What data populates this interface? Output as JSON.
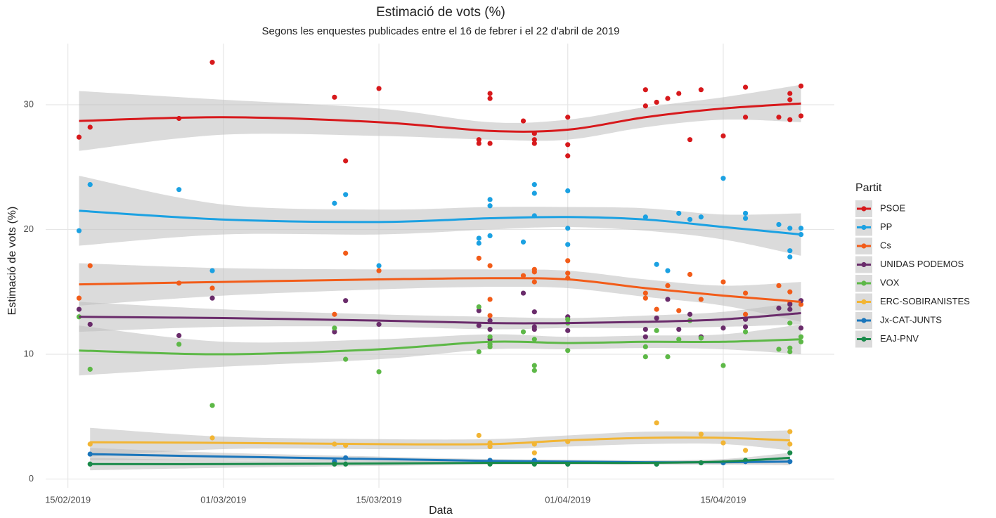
{
  "chart_data": {
    "type": "scatter",
    "title": "Estimació de vots (%)",
    "subtitle": "Segons les enquestes publicades entre el 16 de febrer i el 22 d'abril de 2019",
    "x_label": "Data",
    "y_label": "Estimació de vots (%)",
    "legend_title": "Partit",
    "legend_position": "right",
    "grid": true,
    "band_color": "#bdbdbd",
    "xlim": [
      "2019-02-13",
      "2019-04-25"
    ],
    "xticks": [
      {
        "value": "2019-02-15",
        "label": "15/02/2019"
      },
      {
        "value": "2019-03-01",
        "label": "01/03/2019"
      },
      {
        "value": "2019-03-15",
        "label": "15/03/2019"
      },
      {
        "value": "2019-04-01",
        "label": "01/04/2019"
      },
      {
        "value": "2019-04-15",
        "label": "15/04/2019"
      }
    ],
    "ylim": [
      -0.7,
      34.9
    ],
    "yticks": [
      0,
      10,
      20,
      30
    ],
    "series": [
      {
        "name": "PSOE",
        "color": "#d7191c",
        "x": [
          "2019-02-16",
          "2019-02-17",
          "2019-02-25",
          "2019-02-28",
          "2019-03-11",
          "2019-03-12",
          "2019-03-15",
          "2019-03-24",
          "2019-03-24",
          "2019-03-25",
          "2019-03-25",
          "2019-03-25",
          "2019-03-28",
          "2019-03-29",
          "2019-03-29",
          "2019-03-29",
          "2019-04-01",
          "2019-04-01",
          "2019-04-01",
          "2019-04-08",
          "2019-04-08",
          "2019-04-09",
          "2019-04-10",
          "2019-04-11",
          "2019-04-12",
          "2019-04-13",
          "2019-04-15",
          "2019-04-17",
          "2019-04-17",
          "2019-04-20",
          "2019-04-21",
          "2019-04-21",
          "2019-04-21",
          "2019-04-22",
          "2019-04-22"
        ],
        "values": [
          27.4,
          28.2,
          28.9,
          33.4,
          30.6,
          25.5,
          31.3,
          27.2,
          26.9,
          30.9,
          30.5,
          26.9,
          28.7,
          27.7,
          27.2,
          26.9,
          29.0,
          26.8,
          25.9,
          31.2,
          29.9,
          30.2,
          30.5,
          30.9,
          27.2,
          31.2,
          27.5,
          31.4,
          29.0,
          29.0,
          30.9,
          30.4,
          28.8,
          31.5,
          29.1
        ],
        "trend": {
          "x": [
            "2019-02-16",
            "2019-03-01",
            "2019-03-15",
            "2019-03-25",
            "2019-04-01",
            "2019-04-08",
            "2019-04-15",
            "2019-04-22"
          ],
          "values": [
            28.7,
            29.0,
            28.6,
            27.9,
            28.0,
            29.0,
            29.7,
            30.1
          ],
          "lower": [
            26.3,
            27.6,
            27.5,
            27.2,
            27.2,
            28.2,
            28.8,
            28.6
          ],
          "upper": [
            31.1,
            30.4,
            29.7,
            28.6,
            28.8,
            29.8,
            30.6,
            31.6
          ]
        }
      },
      {
        "name": "PP",
        "color": "#1ba1e2",
        "x": [
          "2019-02-16",
          "2019-02-17",
          "2019-02-25",
          "2019-02-28",
          "2019-03-11",
          "2019-03-12",
          "2019-03-15",
          "2019-03-24",
          "2019-03-24",
          "2019-03-25",
          "2019-03-25",
          "2019-03-25",
          "2019-03-28",
          "2019-03-29",
          "2019-03-29",
          "2019-03-29",
          "2019-04-01",
          "2019-04-01",
          "2019-04-01",
          "2019-04-08",
          "2019-04-09",
          "2019-04-10",
          "2019-04-11",
          "2019-04-12",
          "2019-04-13",
          "2019-04-15",
          "2019-04-17",
          "2019-04-17",
          "2019-04-20",
          "2019-04-21",
          "2019-04-21",
          "2019-04-21",
          "2019-04-22",
          "2019-04-22"
        ],
        "values": [
          19.9,
          23.6,
          23.2,
          16.7,
          22.1,
          22.8,
          17.1,
          19.3,
          18.9,
          22.4,
          21.9,
          19.5,
          19.0,
          23.6,
          22.9,
          21.1,
          23.1,
          20.1,
          18.8,
          21.0,
          17.2,
          16.7,
          21.3,
          20.8,
          21.0,
          24.1,
          21.3,
          20.9,
          20.4,
          20.1,
          18.3,
          17.8,
          20.1,
          19.6
        ],
        "trend": {
          "x": [
            "2019-02-16",
            "2019-03-01",
            "2019-03-15",
            "2019-03-25",
            "2019-04-01",
            "2019-04-08",
            "2019-04-15",
            "2019-04-22"
          ],
          "values": [
            21.5,
            20.8,
            20.6,
            20.9,
            21.0,
            20.8,
            20.2,
            19.6
          ],
          "lower": [
            18.7,
            19.6,
            19.6,
            20.0,
            20.2,
            19.9,
            19.2,
            17.9
          ],
          "upper": [
            24.3,
            22.0,
            21.6,
            21.8,
            21.8,
            21.7,
            21.2,
            21.3
          ]
        }
      },
      {
        "name": "Cs",
        "color": "#f25c19",
        "x": [
          "2019-02-16",
          "2019-02-17",
          "2019-02-25",
          "2019-02-28",
          "2019-03-11",
          "2019-03-12",
          "2019-03-15",
          "2019-03-24",
          "2019-03-25",
          "2019-03-25",
          "2019-03-25",
          "2019-03-28",
          "2019-03-29",
          "2019-03-29",
          "2019-03-29",
          "2019-04-01",
          "2019-04-01",
          "2019-04-01",
          "2019-04-08",
          "2019-04-08",
          "2019-04-09",
          "2019-04-10",
          "2019-04-11",
          "2019-04-12",
          "2019-04-13",
          "2019-04-15",
          "2019-04-17",
          "2019-04-17",
          "2019-04-20",
          "2019-04-21",
          "2019-04-21",
          "2019-04-22"
        ],
        "values": [
          14.5,
          17.1,
          15.7,
          15.3,
          13.2,
          18.1,
          16.7,
          17.7,
          17.1,
          14.4,
          13.1,
          16.3,
          16.8,
          16.6,
          15.8,
          17.5,
          16.5,
          16.1,
          14.9,
          14.5,
          13.6,
          15.5,
          13.5,
          16.4,
          14.4,
          15.8,
          14.9,
          13.2,
          15.5,
          15.0,
          14.1,
          14.0
        ],
        "trend": {
          "x": [
            "2019-02-16",
            "2019-03-01",
            "2019-03-15",
            "2019-03-25",
            "2019-04-01",
            "2019-04-08",
            "2019-04-15",
            "2019-04-22"
          ],
          "values": [
            15.6,
            15.8,
            16.0,
            16.1,
            16.0,
            15.3,
            14.7,
            14.2
          ],
          "lower": [
            13.9,
            14.7,
            15.2,
            15.4,
            15.3,
            14.6,
            13.9,
            12.6
          ],
          "upper": [
            17.3,
            16.9,
            16.8,
            16.8,
            16.7,
            16.0,
            15.5,
            15.8
          ]
        }
      },
      {
        "name": "UNIDAS PODEMOS",
        "color": "#6a2c6b",
        "x": [
          "2019-02-16",
          "2019-02-17",
          "2019-02-25",
          "2019-02-28",
          "2019-03-11",
          "2019-03-12",
          "2019-03-15",
          "2019-03-24",
          "2019-03-24",
          "2019-03-25",
          "2019-03-25",
          "2019-03-25",
          "2019-03-28",
          "2019-03-29",
          "2019-03-29",
          "2019-03-29",
          "2019-04-01",
          "2019-04-01",
          "2019-04-08",
          "2019-04-08",
          "2019-04-09",
          "2019-04-10",
          "2019-04-11",
          "2019-04-12",
          "2019-04-13",
          "2019-04-15",
          "2019-04-17",
          "2019-04-17",
          "2019-04-20",
          "2019-04-21",
          "2019-04-21",
          "2019-04-22",
          "2019-04-22"
        ],
        "values": [
          13.6,
          12.4,
          11.5,
          14.5,
          11.8,
          14.3,
          12.4,
          13.5,
          12.3,
          12.7,
          12.0,
          11.2,
          14.9,
          13.4,
          12.2,
          12.0,
          13.0,
          11.9,
          12.0,
          11.4,
          12.9,
          14.4,
          12.0,
          13.2,
          11.4,
          12.1,
          12.8,
          12.2,
          13.7,
          14.0,
          13.6,
          14.3,
          12.1
        ],
        "trend": {
          "x": [
            "2019-02-16",
            "2019-03-01",
            "2019-03-15",
            "2019-03-25",
            "2019-04-01",
            "2019-04-08",
            "2019-04-15",
            "2019-04-22"
          ],
          "values": [
            13.0,
            12.9,
            12.7,
            12.5,
            12.5,
            12.6,
            12.8,
            13.3
          ],
          "lower": [
            11.8,
            12.2,
            12.2,
            12.0,
            12.1,
            12.1,
            12.2,
            12.4
          ],
          "upper": [
            14.2,
            13.6,
            13.2,
            13.0,
            12.9,
            13.1,
            13.4,
            14.2
          ]
        }
      },
      {
        "name": "VOX",
        "color": "#5db847",
        "x": [
          "2019-02-16",
          "2019-02-17",
          "2019-02-25",
          "2019-02-28",
          "2019-03-11",
          "2019-03-12",
          "2019-03-15",
          "2019-03-24",
          "2019-03-24",
          "2019-03-25",
          "2019-03-25",
          "2019-03-25",
          "2019-03-28",
          "2019-03-29",
          "2019-03-29",
          "2019-03-29",
          "2019-04-01",
          "2019-04-01",
          "2019-04-01",
          "2019-04-08",
          "2019-04-08",
          "2019-04-09",
          "2019-04-10",
          "2019-04-11",
          "2019-04-12",
          "2019-04-13",
          "2019-04-15",
          "2019-04-17",
          "2019-04-20",
          "2019-04-21",
          "2019-04-21",
          "2019-04-21",
          "2019-04-22",
          "2019-04-22"
        ],
        "values": [
          13.0,
          8.8,
          10.8,
          5.9,
          12.1,
          9.6,
          8.6,
          13.8,
          10.2,
          11.4,
          10.8,
          10.6,
          11.8,
          11.2,
          9.1,
          8.7,
          12.8,
          12.5,
          10.3,
          10.6,
          9.8,
          11.9,
          9.8,
          11.2,
          12.7,
          11.3,
          9.1,
          11.8,
          10.4,
          12.5,
          10.5,
          10.2,
          11.4,
          11.0
        ],
        "trend": {
          "x": [
            "2019-02-16",
            "2019-03-01",
            "2019-03-15",
            "2019-03-25",
            "2019-04-01",
            "2019-04-08",
            "2019-04-15",
            "2019-04-22"
          ],
          "values": [
            10.3,
            10.0,
            10.4,
            11.0,
            10.9,
            11.0,
            11.0,
            11.2
          ],
          "lower": [
            8.3,
            9.0,
            9.6,
            10.4,
            10.4,
            10.5,
            10.4,
            10.0
          ],
          "upper": [
            12.3,
            11.0,
            11.2,
            11.6,
            11.4,
            11.5,
            11.6,
            12.4
          ]
        }
      },
      {
        "name": "ERC-SOBIRANISTES",
        "color": "#f2b534",
        "x": [
          "2019-02-17",
          "2019-02-28",
          "2019-03-11",
          "2019-03-12",
          "2019-03-24",
          "2019-03-25",
          "2019-03-25",
          "2019-03-29",
          "2019-03-29",
          "2019-04-01",
          "2019-04-09",
          "2019-04-13",
          "2019-04-15",
          "2019-04-17",
          "2019-04-21",
          "2019-04-21"
        ],
        "values": [
          2.8,
          3.3,
          2.8,
          2.7,
          3.5,
          2.9,
          2.6,
          2.8,
          2.1,
          3.0,
          4.5,
          3.6,
          2.9,
          2.3,
          3.8,
          2.8
        ],
        "trend": {
          "x": [
            "2019-02-17",
            "2019-03-01",
            "2019-03-15",
            "2019-03-25",
            "2019-04-01",
            "2019-04-08",
            "2019-04-15",
            "2019-04-21"
          ],
          "values": [
            2.95,
            2.9,
            2.8,
            2.8,
            3.1,
            3.3,
            3.3,
            3.1
          ],
          "lower": [
            1.8,
            2.4,
            2.4,
            2.4,
            2.6,
            2.8,
            2.8,
            2.3
          ],
          "upper": [
            4.1,
            3.4,
            3.2,
            3.2,
            3.5,
            3.8,
            3.8,
            3.9
          ]
        }
      },
      {
        "name": "Jx-CAT-JUNTS",
        "color": "#1a75bb",
        "x": [
          "2019-02-17",
          "2019-03-11",
          "2019-03-12",
          "2019-03-25",
          "2019-03-29",
          "2019-04-01",
          "2019-04-09",
          "2019-04-15",
          "2019-04-17",
          "2019-04-21"
        ],
        "values": [
          2.0,
          1.4,
          1.7,
          1.5,
          1.5,
          1.2,
          1.2,
          1.3,
          1.4,
          1.4
        ],
        "trend": {
          "x": [
            "2019-02-17",
            "2019-03-01",
            "2019-03-15",
            "2019-03-25",
            "2019-04-01",
            "2019-04-08",
            "2019-04-15",
            "2019-04-21"
          ],
          "values": [
            2.0,
            1.8,
            1.6,
            1.45,
            1.4,
            1.35,
            1.35,
            1.4
          ],
          "lower": [
            1.5,
            1.5,
            1.4,
            1.3,
            1.25,
            1.2,
            1.15,
            1.1
          ],
          "upper": [
            2.5,
            2.1,
            1.8,
            1.6,
            1.55,
            1.5,
            1.55,
            1.7
          ]
        }
      },
      {
        "name": "EAJ-PNV",
        "color": "#1a8a4a",
        "x": [
          "2019-02-17",
          "2019-03-11",
          "2019-03-12",
          "2019-03-25",
          "2019-03-29",
          "2019-04-01",
          "2019-04-09",
          "2019-04-13",
          "2019-04-17",
          "2019-04-21"
        ],
        "values": [
          1.2,
          1.2,
          1.2,
          1.2,
          1.2,
          1.2,
          1.2,
          1.3,
          1.5,
          2.1
        ],
        "trend": {
          "x": [
            "2019-02-17",
            "2019-03-01",
            "2019-03-15",
            "2019-03-25",
            "2019-04-01",
            "2019-04-08",
            "2019-04-15",
            "2019-04-21"
          ],
          "values": [
            1.2,
            1.2,
            1.25,
            1.3,
            1.3,
            1.3,
            1.4,
            1.7
          ],
          "lower": [
            0.7,
            0.9,
            1.05,
            1.15,
            1.15,
            1.15,
            1.2,
            1.3
          ],
          "upper": [
            1.7,
            1.5,
            1.45,
            1.45,
            1.45,
            1.45,
            1.6,
            2.1
          ]
        }
      }
    ]
  }
}
